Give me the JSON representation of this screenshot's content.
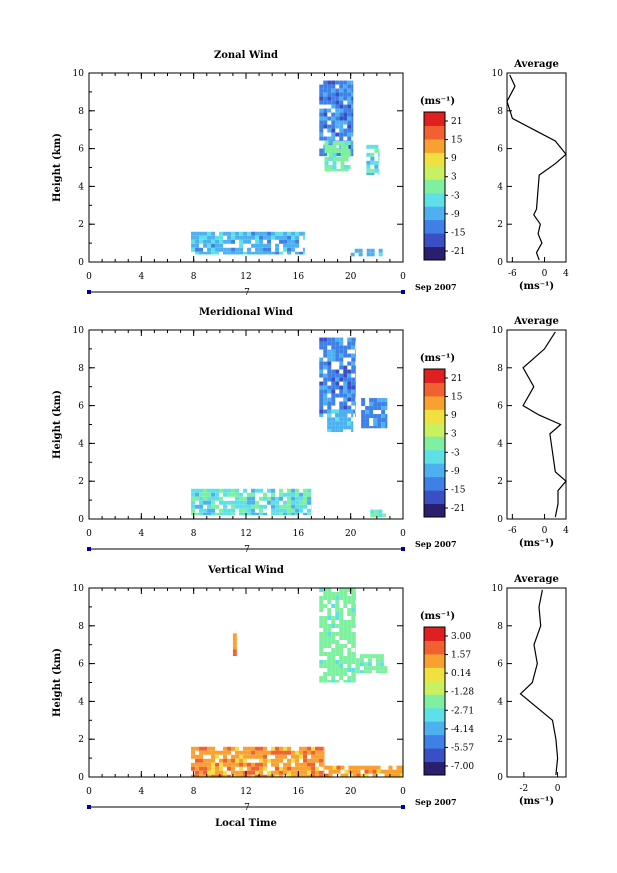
{
  "colors": {
    "scale": [
      "#2a1f6e",
      "#3a4fc4",
      "#3f7fe8",
      "#4fb0f0",
      "#5fe0e8",
      "#7ef0a0",
      "#c8f060",
      "#f0e040",
      "#f8a030",
      "#f06030",
      "#e02020"
    ],
    "wind": "#5fb8ee",
    "wind_light": "#7fe8e0",
    "wind_green": "#9fe890",
    "vertical_green": "#d0f070",
    "axis": "#000000",
    "time_bar": "#0000aa"
  },
  "common": {
    "x_ticks": [
      "0",
      "4",
      "8",
      "12",
      "16",
      "20",
      "0"
    ],
    "day_label": "7",
    "date_label": "Sep 2007",
    "x_axis_label": "Local Time",
    "y_label": "Height (km)",
    "unit_label": "(ms⁻¹)",
    "avg_title": "Average",
    "avg_unit": "(ms⁻¹)"
  },
  "chart_data": [
    {
      "type": "heatmap",
      "title": "Zonal Wind",
      "ylabel": "Height (km)",
      "xlabel": "",
      "xlim": [
        0,
        24
      ],
      "ylim": [
        0,
        10
      ],
      "y_ticks": [
        "0",
        "2",
        "4",
        "6",
        "8",
        "10"
      ],
      "colorbar": {
        "unit": "(ms⁻¹)",
        "ticks": [
          "21",
          "15",
          "9",
          "3",
          "-3",
          "-9",
          "-15",
          "-21"
        ],
        "range": [
          -24,
          24
        ]
      },
      "regions": [
        {
          "x": [
            17.6,
            20.2
          ],
          "y": [
            5.6,
            9.6
          ],
          "value": -14
        },
        {
          "x": [
            18.0,
            20.0
          ],
          "y": [
            4.8,
            6.4
          ],
          "value": -2
        },
        {
          "x": [
            21.2,
            22.2
          ],
          "y": [
            4.6,
            6.2
          ],
          "value": -6
        },
        {
          "x": [
            7.8,
            16.5
          ],
          "y": [
            0.4,
            1.6
          ],
          "value": -8
        },
        {
          "x": [
            20.0,
            22.6
          ],
          "y": [
            0.3,
            0.7
          ],
          "value": -7
        }
      ],
      "average_profile": {
        "title": "Average",
        "unit": "(ms⁻¹)",
        "x_ticks": [
          "-6",
          "0",
          "4"
        ],
        "xlim": [
          -7,
          4
        ],
        "y_ticks": [
          "0",
          "2",
          "4",
          "6",
          "8",
          "10"
        ],
        "points": [
          [
            -1,
            0.1
          ],
          [
            -1.5,
            0.5
          ],
          [
            -0.5,
            1.0
          ],
          [
            -1.2,
            1.5
          ],
          [
            -0.8,
            2.0
          ],
          [
            -2,
            2.5
          ],
          [
            -1.5,
            2.8
          ],
          [
            -1,
            4.6
          ],
          [
            2,
            5.2
          ],
          [
            4,
            5.7
          ],
          [
            2,
            6.4
          ],
          [
            -2,
            7.0
          ],
          [
            -6,
            7.6
          ],
          [
            -7,
            8.5
          ],
          [
            -5.5,
            9.3
          ],
          [
            -6.5,
            9.9
          ]
        ]
      }
    },
    {
      "type": "heatmap",
      "title": "Meridional Wind",
      "ylabel": "Height (km)",
      "xlabel": "",
      "xlim": [
        0,
        24
      ],
      "ylim": [
        0,
        10
      ],
      "y_ticks": [
        "0",
        "2",
        "4",
        "6",
        "8",
        "10"
      ],
      "colorbar": {
        "unit": "(ms⁻¹)",
        "ticks": [
          "21",
          "15",
          "9",
          "3",
          "-3",
          "-9",
          "-15",
          "-21"
        ],
        "range": [
          -24,
          24
        ]
      },
      "regions": [
        {
          "x": [
            17.6,
            20.4
          ],
          "y": [
            5.4,
            9.6
          ],
          "value": -12
        },
        {
          "x": [
            18.2,
            20.2
          ],
          "y": [
            4.6,
            5.8
          ],
          "value": -7
        },
        {
          "x": [
            20.8,
            22.8
          ],
          "y": [
            4.8,
            6.4
          ],
          "value": -11
        },
        {
          "x": [
            7.8,
            17.0
          ],
          "y": [
            0.2,
            1.6
          ],
          "value": -6
        },
        {
          "x": [
            21.5,
            22.7
          ],
          "y": [
            0.1,
            0.5
          ],
          "value": -6
        }
      ],
      "average_profile": {
        "title": "Average",
        "unit": "(ms⁻¹)",
        "x_ticks": [
          "-6",
          "0",
          "4"
        ],
        "xlim": [
          -7,
          4
        ],
        "y_ticks": [
          "0",
          "2",
          "4",
          "6",
          "8",
          "10"
        ],
        "points": [
          [
            2,
            0.1
          ],
          [
            2.5,
            0.8
          ],
          [
            2.5,
            1.5
          ],
          [
            4,
            2.0
          ],
          [
            2,
            2.5
          ],
          [
            1,
            4.5
          ],
          [
            3,
            5.0
          ],
          [
            -1,
            5.5
          ],
          [
            -4,
            6.0
          ],
          [
            -2,
            7.0
          ],
          [
            -4,
            8.0
          ],
          [
            0,
            9.0
          ],
          [
            2,
            9.9
          ]
        ]
      }
    },
    {
      "type": "heatmap",
      "title": "Vertical Wind",
      "ylabel": "Height (km)",
      "xlabel": "Local Time",
      "xlim": [
        0,
        24
      ],
      "ylim": [
        0,
        10
      ],
      "y_ticks": [
        "0",
        "2",
        "4",
        "6",
        "8",
        "10"
      ],
      "colorbar": {
        "unit": "(ms⁻¹)",
        "ticks": [
          "3.00",
          "1.57",
          "0.14",
          "-1.28",
          "-2.71",
          "-4.14",
          "-5.57",
          "-7.00"
        ],
        "range": [
          -7.71,
          3.71
        ]
      },
      "regions": [
        {
          "x": [
            17.6,
            20.4
          ],
          "y": [
            5.0,
            10.0
          ],
          "value": -2.5
        },
        {
          "x": [
            20.4,
            22.8
          ],
          "y": [
            5.5,
            6.5
          ],
          "value": -2.5
        },
        {
          "x": [
            7.8,
            18.0
          ],
          "y": [
            0.0,
            1.6
          ],
          "value": 1.2
        },
        {
          "x": [
            18.0,
            24.0
          ],
          "y": [
            0.0,
            0.6
          ],
          "value": 1.2
        },
        {
          "x": [
            11.0,
            11.3
          ],
          "y": [
            6.4,
            7.6
          ],
          "value": 1.6
        }
      ],
      "average_profile": {
        "title": "Average",
        "unit": "(ms⁻¹)",
        "x_ticks": [
          "-2",
          "0"
        ],
        "xlim": [
          -3,
          0.5
        ],
        "y_ticks": [
          "0",
          "2",
          "4",
          "6",
          "8",
          "10"
        ],
        "points": [
          [
            -0.1,
            0.1
          ],
          [
            0,
            1
          ],
          [
            -0.1,
            2
          ],
          [
            -0.3,
            3
          ],
          [
            -2.2,
            4.4
          ],
          [
            -1.5,
            5
          ],
          [
            -1.2,
            6
          ],
          [
            -1.4,
            7
          ],
          [
            -1,
            8
          ],
          [
            -1.1,
            9
          ],
          [
            -0.9,
            9.9
          ]
        ]
      }
    }
  ]
}
